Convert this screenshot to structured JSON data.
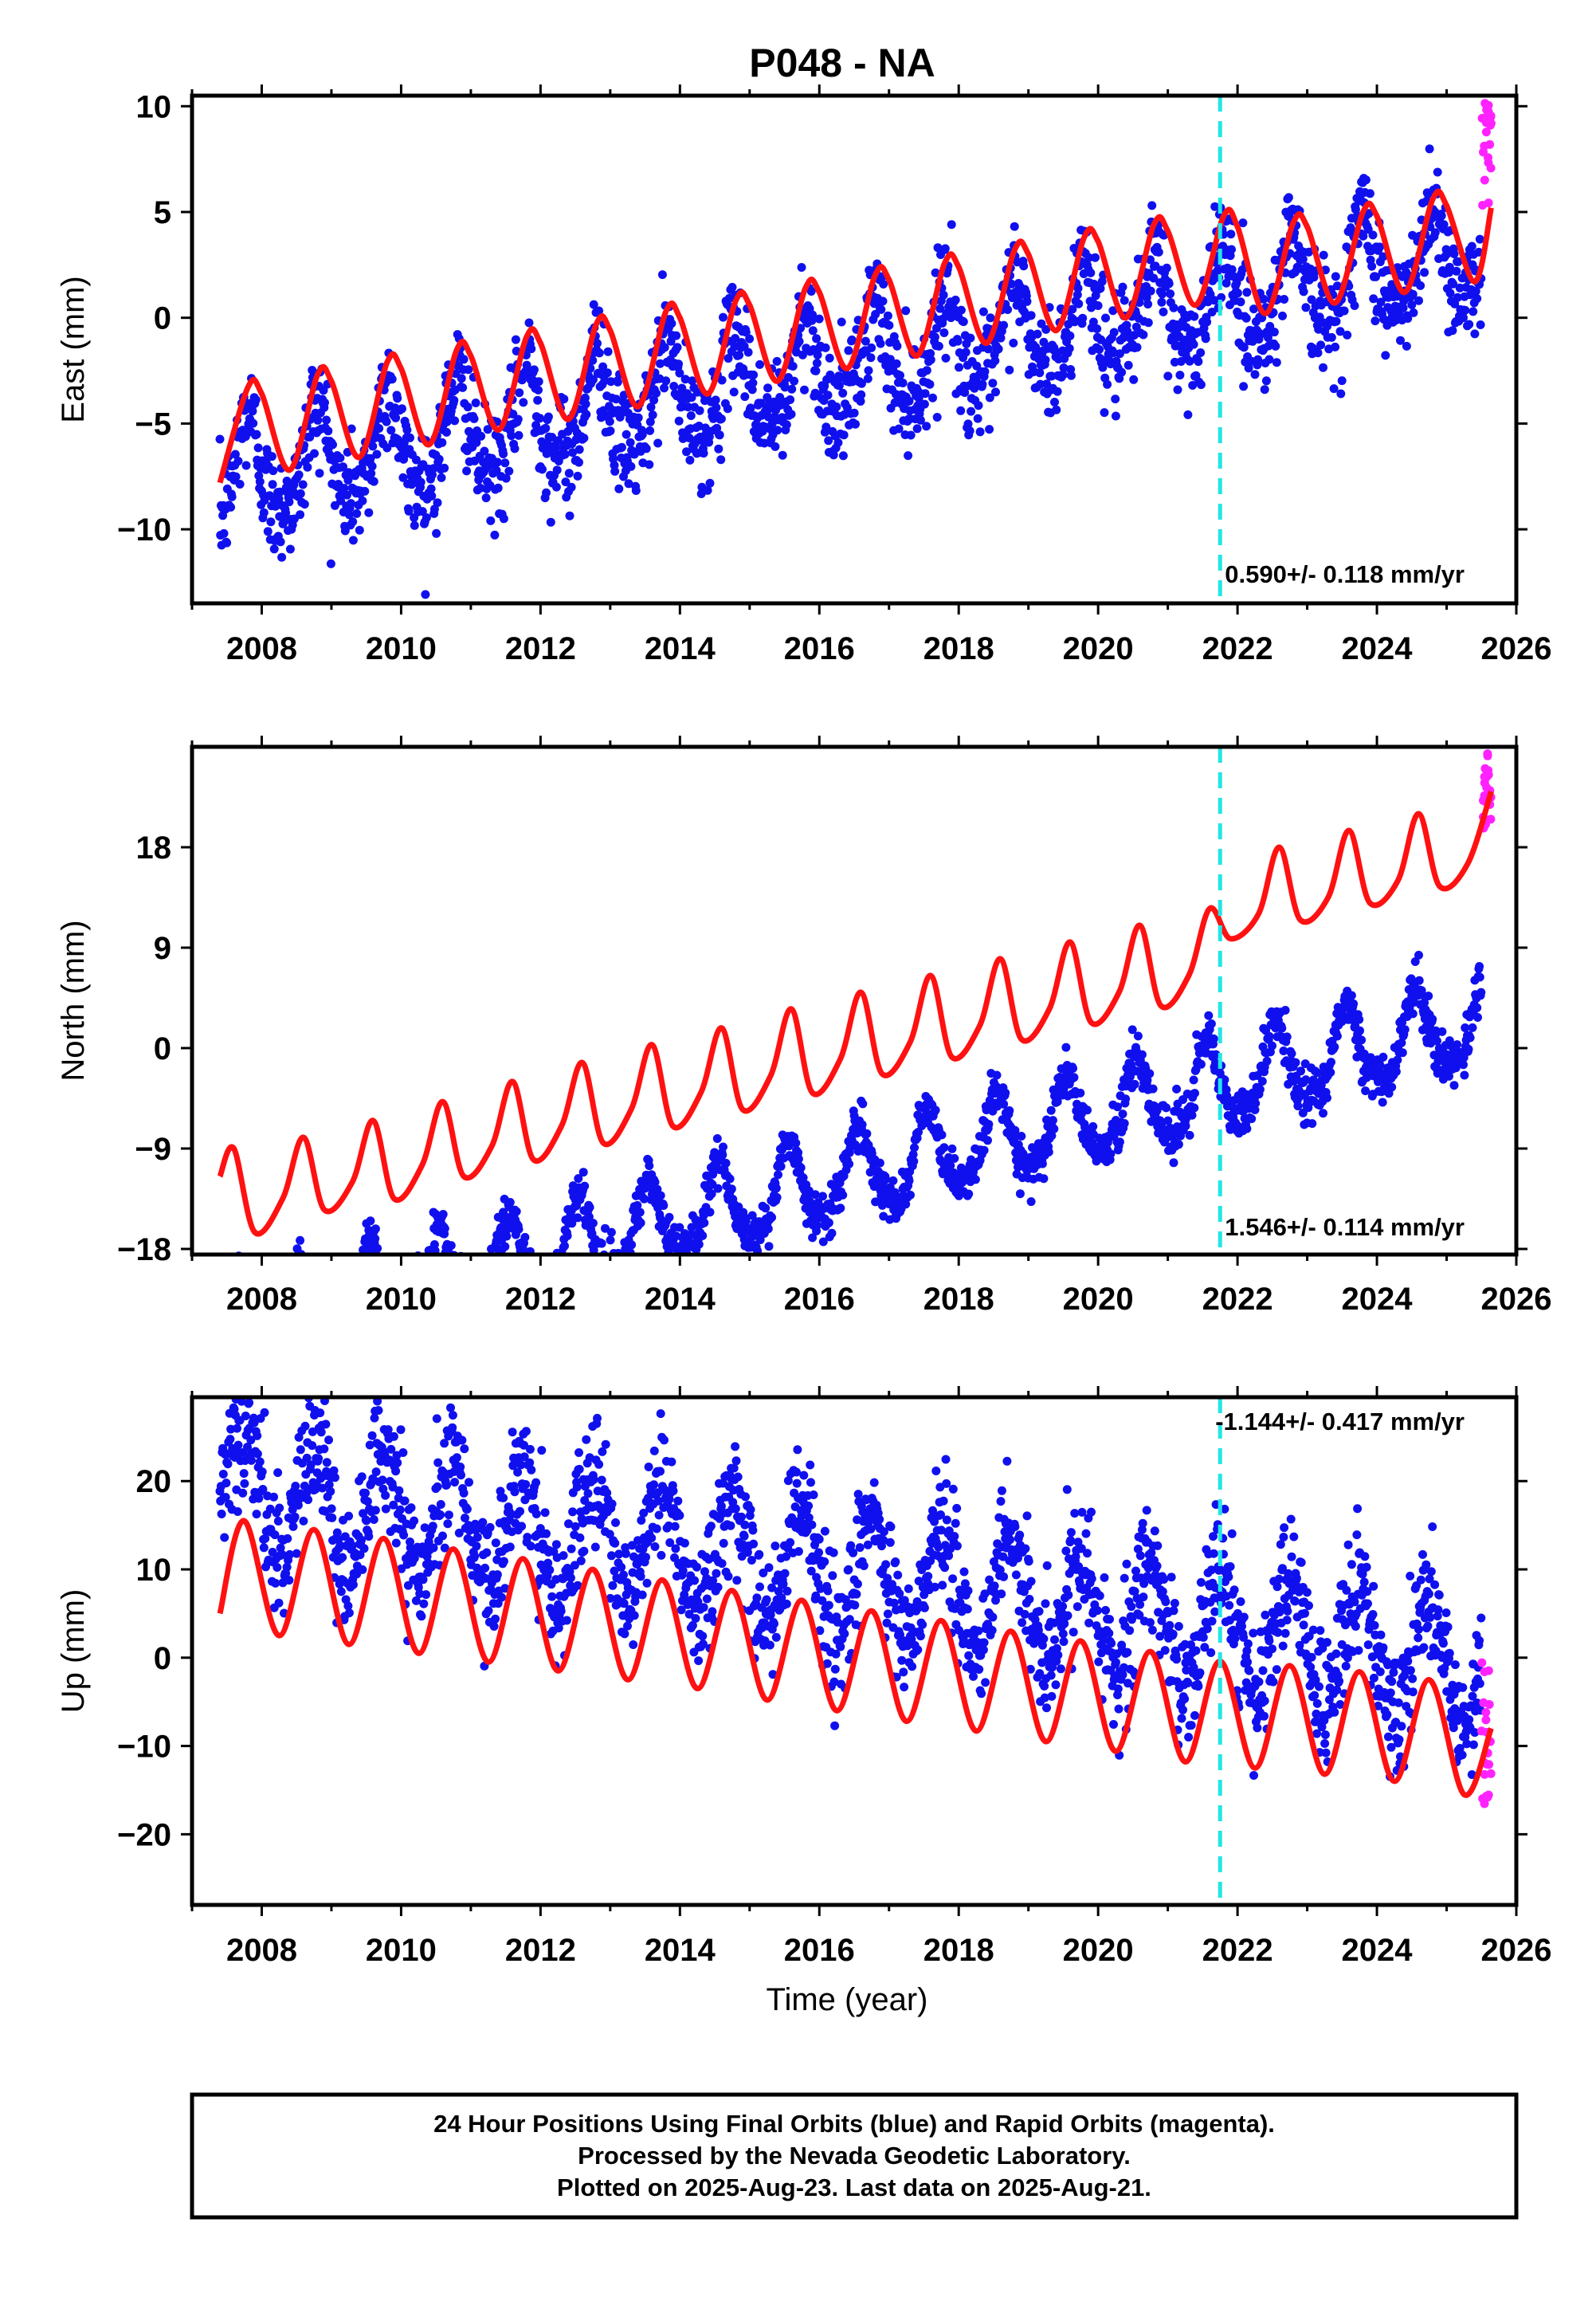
{
  "figure": {
    "title": "P048 - NA",
    "xlabel": "Time (year)",
    "footer": [
      "24 Hour Positions Using Final Orbits (blue) and Rapid Orbits (magenta).",
      "Processed by the Nevada Geodetic Laboratory.",
      "Plotted on 2025-Aug-23. Last data on 2025-Aug-21."
    ]
  },
  "colors": {
    "final_orbits": "#1010ee",
    "rapid_orbits": "#ff22ff",
    "model_fit": "#ff1111",
    "event_line": "#22e6e6",
    "frame": "#000000"
  },
  "chart_data": [
    {
      "type": "scatter",
      "component": "east",
      "ylabel": "East (mm)",
      "rate_label": "0.590+/- 0.118 mm/yr",
      "xlim": [
        2007.0,
        2026.0
      ],
      "ylim": [
        -13.5,
        10.5
      ],
      "xticks": [
        "2008",
        "2010",
        "2012",
        "2014",
        "2016",
        "2018",
        "2020",
        "2022",
        "2024",
        "2026"
      ],
      "yticks": [
        "10",
        "5",
        "0",
        "-5",
        "-10"
      ],
      "ytick_values": [
        10,
        5,
        0,
        -5,
        -10
      ],
      "event_line_x": 2021.75,
      "series": [
        {
          "name": "Final Orbits",
          "x_range": [
            2007.4,
            2025.5
          ],
          "model": {
            "offset": -2.3,
            "slope": 0.59,
            "annual_amp": 2.3,
            "annual_peak": 2007.8,
            "semiannual_amp": 0.6,
            "scatter": 1.3
          }
        },
        {
          "name": "Rapid Orbits",
          "x_range": [
            2025.5,
            2025.64
          ],
          "y_range": [
            4.5,
            10.2
          ]
        },
        {
          "name": "Model fit",
          "x": [
            2007.4,
            2007.8,
            2008.0,
            2008.4,
            2008.8,
            2009.0,
            2009.4,
            2009.8,
            2010.0,
            2010.4,
            2010.8,
            2011.0,
            2011.4,
            2011.8,
            2012.0,
            2012.4,
            2012.8,
            2013.0,
            2013.4,
            2013.8,
            2014.0,
            2014.4,
            2014.8,
            2015.0,
            2015.4,
            2015.8,
            2016.0,
            2016.4,
            2016.8,
            2017.0,
            2017.4,
            2017.8,
            2018.0,
            2018.4,
            2018.8,
            2019.0,
            2019.4,
            2019.8,
            2020.0,
            2020.4,
            2020.8,
            2021.0,
            2021.4,
            2021.8,
            2022.0,
            2022.4,
            2022.8,
            2023.0,
            2023.4,
            2023.8,
            2024.0,
            2024.4,
            2024.8,
            2025.0,
            2025.4,
            2025.64
          ],
          "y": [
            -7.8,
            -3.3,
            -3.6,
            -7.2,
            -2.7,
            -3.0,
            -6.6,
            -2.1,
            -2.4,
            -6.0,
            -1.5,
            -1.8,
            -5.3,
            -0.9,
            -1.2,
            -4.8,
            -0.3,
            -0.6,
            -4.2,
            0.3,
            0.0,
            -3.6,
            0.8,
            0.6,
            -3.0,
            1.4,
            1.2,
            -2.4,
            2.0,
            1.8,
            -1.8,
            2.6,
            2.4,
            -1.2,
            3.2,
            3.0,
            -0.6,
            3.8,
            3.6,
            0.0,
            4.4,
            4.1,
            0.6,
            4.8,
            4.3,
            0.2,
            4.5,
            4.3,
            0.7,
            5.0,
            4.8,
            1.2,
            5.6,
            5.3,
            1.7,
            5.2
          ]
        }
      ]
    },
    {
      "type": "scatter",
      "component": "north",
      "ylabel": "North (mm)",
      "rate_label": "1.546+/- 0.114 mm/yr",
      "xlim": [
        2007.0,
        2026.0
      ],
      "ylim": [
        -18.5,
        27.0
      ],
      "xticks": [
        "2008",
        "2010",
        "2012",
        "2014",
        "2016",
        "2018",
        "2020",
        "2022",
        "2024",
        "2026"
      ],
      "yticks": [
        "18",
        "9",
        "0",
        "-9",
        "-18"
      ],
      "ytick_values": [
        18,
        9,
        0,
        -9,
        -18
      ],
      "event_line_x": 2021.75,
      "series": [
        {
          "name": "Final Orbits",
          "x_range": [
            2007.4,
            2025.5
          ],
          "model": {
            "offset": -11.5,
            "slope": 1.546,
            "annual_amp": 3.6,
            "annual_peak": 2007.55,
            "semiannual_amp": 0.8,
            "scatter": 1.1
          }
        },
        {
          "name": "Rapid Orbits",
          "x_range": [
            2025.5,
            2025.64
          ],
          "y_range": [
            19.5,
            26.5
          ]
        },
        {
          "name": "Model fit",
          "x": [
            2007.4,
            2007.6,
            2007.9,
            2008.3,
            2008.6,
            2008.9,
            2009.3,
            2009.6,
            2009.9,
            2010.3,
            2010.6,
            2010.9,
            2011.3,
            2011.6,
            2011.9,
            2012.3,
            2012.6,
            2012.9,
            2013.3,
            2013.6,
            2013.9,
            2014.3,
            2014.6,
            2014.9,
            2015.3,
            2015.6,
            2015.9,
            2016.3,
            2016.6,
            2016.9,
            2017.3,
            2017.6,
            2017.9,
            2018.3,
            2018.6,
            2018.9,
            2019.3,
            2019.6,
            2019.9,
            2020.3,
            2020.6,
            2020.9,
            2021.3,
            2021.6,
            2021.9,
            2022.3,
            2022.6,
            2022.9,
            2023.3,
            2023.6,
            2023.9,
            2024.3,
            2024.6,
            2024.9,
            2025.3,
            2025.64
          ],
          "y": [
            -11.5,
            -9.0,
            -16.5,
            -13.5,
            -8.0,
            -14.5,
            -12.0,
            -6.5,
            -13.5,
            -10.5,
            -4.8,
            -11.5,
            -8.8,
            -3.0,
            -10.0,
            -7.0,
            -1.3,
            -8.5,
            -5.5,
            0.3,
            -7.0,
            -4.0,
            1.8,
            -5.5,
            -2.5,
            3.5,
            -4.0,
            -1.0,
            5.0,
            -2.3,
            0.5,
            6.5,
            -0.8,
            2.0,
            8.0,
            0.8,
            3.5,
            9.5,
            2.3,
            5.0,
            11.0,
            3.8,
            6.5,
            12.5,
            9.8,
            12.0,
            18.0,
            11.5,
            13.5,
            19.5,
            13.0,
            15.0,
            21.0,
            14.5,
            16.5,
            23.0
          ]
        }
      ]
    },
    {
      "type": "scatter",
      "component": "up",
      "ylabel": "Up (mm)",
      "rate_label": "-1.144+/- 0.417 mm/yr",
      "xlim": [
        2007.0,
        2026.0
      ],
      "ylim": [
        -28.0,
        29.5
      ],
      "xticks": [
        "2008",
        "2010",
        "2012",
        "2014",
        "2016",
        "2018",
        "2020",
        "2022",
        "2024",
        "2026"
      ],
      "yticks": [
        "20",
        "10",
        "0",
        "-10",
        "-20"
      ],
      "ytick_values": [
        20,
        10,
        0,
        -10,
        -20
      ],
      "event_line_x": 2021.75,
      "series": [
        {
          "name": "Final Orbits",
          "x_range": [
            2007.4,
            2025.5
          ],
          "model": {
            "offset": 9.0,
            "slope": -1.144,
            "annual_amp": 6.8,
            "annual_peak": 2007.75,
            "semiannual_amp": 0.0,
            "scatter": 3.6
          }
        },
        {
          "name": "Rapid Orbits",
          "x_range": [
            2025.5,
            2025.64
          ],
          "y_range": [
            -17.0,
            -0.5
          ]
        },
        {
          "name": "Model fit",
          "x": [
            2007.4,
            2007.75,
            2008.25,
            2008.75,
            2009.25,
            2009.75,
            2010.25,
            2010.75,
            2011.25,
            2011.75,
            2012.25,
            2012.75,
            2013.25,
            2013.75,
            2014.25,
            2014.75,
            2015.25,
            2015.75,
            2016.25,
            2016.75,
            2017.25,
            2017.75,
            2018.25,
            2018.75,
            2019.25,
            2019.75,
            2020.25,
            2020.75,
            2021.25,
            2021.75,
            2022.25,
            2022.75,
            2023.25,
            2023.75,
            2024.25,
            2024.75,
            2025.25,
            2025.64
          ],
          "y": [
            5.0,
            15.5,
            2.5,
            14.5,
            1.5,
            13.5,
            0.5,
            12.3,
            -0.5,
            11.2,
            -1.5,
            10.0,
            -2.5,
            8.8,
            -3.5,
            7.6,
            -4.8,
            6.5,
            -6.0,
            5.3,
            -7.2,
            4.2,
            -8.3,
            3.0,
            -9.5,
            1.9,
            -10.6,
            0.7,
            -11.8,
            -0.4,
            -12.5,
            -0.9,
            -13.2,
            -1.6,
            -14.0,
            -2.5,
            -15.5,
            -8.0
          ]
        }
      ]
    }
  ]
}
